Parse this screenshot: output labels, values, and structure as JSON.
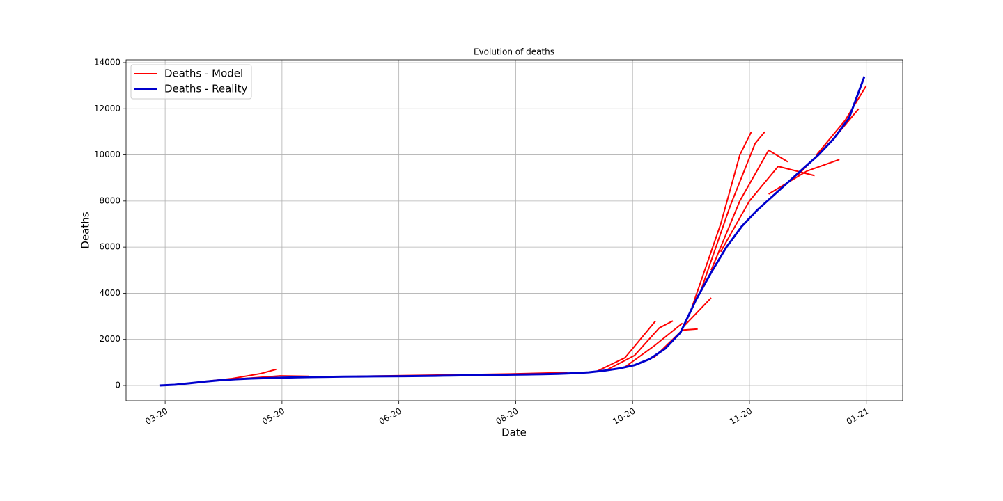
{
  "chart_data": {
    "type": "line",
    "title": "Evolution of deaths",
    "x_label": "Date",
    "y_label": "Deaths",
    "xlim": [
      -20.4,
      385
    ],
    "ylim": [
      -664,
      14120
    ],
    "xticks": [
      {
        "value": 0,
        "label": "03-20"
      },
      {
        "value": 61,
        "label": "05-20"
      },
      {
        "value": 122,
        "label": "06-20"
      },
      {
        "value": 183,
        "label": "08-20"
      },
      {
        "value": 244,
        "label": "10-20"
      },
      {
        "value": 305,
        "label": "11-20"
      },
      {
        "value": 366,
        "label": "01-21"
      }
    ],
    "yticks": [
      0,
      2000,
      4000,
      6000,
      8000,
      10000,
      12000,
      14000
    ],
    "grid": true,
    "legend": "upper left",
    "series": [
      {
        "name": "Deaths - Model",
        "color": "#ff0000",
        "width": 2,
        "x": [
          20,
          35,
          50,
          58,
          null,
          30,
          60,
          75,
          null,
          100,
          180,
          210,
          null,
          225,
          240,
          250,
          256,
          null,
          230,
          245,
          258,
          265,
          null,
          240,
          255,
          270,
          null,
          255,
          270,
          278,
          null,
          270,
          285,
          null,
          275,
          290,
          300,
          306,
          null,
          280,
          295,
          308,
          313,
          null,
          285,
          300,
          315,
          325,
          null,
          290,
          305,
          320,
          339,
          null,
          315,
          335,
          352,
          null,
          330,
          350,
          362,
          null,
          340,
          355,
          366
        ],
        "values": [
          170,
          300,
          520,
          700,
          null,
          230,
          420,
          400,
          null,
          400,
          500,
          560,
          null,
          600,
          1200,
          2200,
          2800,
          null,
          650,
          1300,
          2500,
          2800,
          null,
          800,
          1700,
          2700,
          null,
          1200,
          2400,
          2450,
          null,
          2500,
          3800,
          null,
          3400,
          7000,
          10000,
          11000,
          null,
          4200,
          7800,
          10500,
          11000,
          null,
          5000,
          8000,
          10200,
          9700,
          null,
          5800,
          8000,
          9500,
          9100,
          null,
          8300,
          9300,
          9800,
          null,
          9100,
          10800,
          12000,
          null,
          10000,
          11500,
          13000
        ]
      },
      {
        "name": "Deaths - Reality",
        "color": "#0000cc",
        "width": 3,
        "x": [
          -3,
          5,
          13,
          21,
          29,
          37,
          45,
          53,
          61,
          69,
          77,
          85,
          93,
          101,
          109,
          117,
          125,
          133,
          141,
          149,
          157,
          165,
          173,
          181,
          189,
          197,
          205,
          213,
          221,
          229,
          237,
          245,
          253,
          261,
          269,
          277,
          285,
          293,
          301,
          309,
          317,
          325,
          333,
          341,
          349,
          357,
          365
        ],
        "values": [
          0,
          30,
          100,
          170,
          230,
          270,
          300,
          320,
          340,
          355,
          365,
          375,
          385,
          390,
          395,
          400,
          405,
          410,
          420,
          430,
          440,
          450,
          460,
          470,
          480,
          490,
          505,
          530,
          570,
          640,
          740,
          880,
          1150,
          1600,
          2300,
          3700,
          4900,
          6000,
          6900,
          7600,
          8200,
          8800,
          9400,
          10000,
          10700,
          11600,
          13400
        ]
      }
    ]
  }
}
